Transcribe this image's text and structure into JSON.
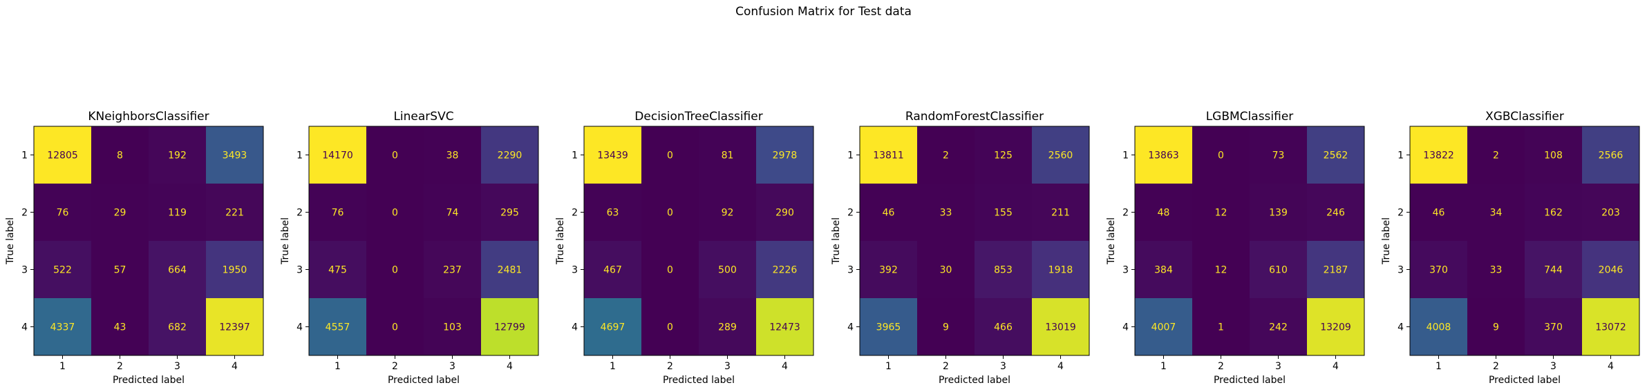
{
  "suptitle": "Confusion Matrix for Test data",
  "colors": {
    "low": "#440154",
    "high": "#fde725",
    "cell_text_dark_bg": "#fde725",
    "cell_text_light_bg": "#440154"
  },
  "chart_data": [
    {
      "type": "heatmap",
      "title": "KNeighborsClassifier",
      "xlabel": "Predicted label",
      "ylabel": "True label",
      "x_ticks": [
        "1",
        "2",
        "3",
        "4"
      ],
      "y_ticks": [
        "1",
        "2",
        "3",
        "4"
      ],
      "matrix": [
        [
          12805,
          8,
          192,
          3493
        ],
        [
          76,
          29,
          119,
          221
        ],
        [
          522,
          57,
          664,
          1950
        ],
        [
          4337,
          43,
          682,
          12397
        ]
      ]
    },
    {
      "type": "heatmap",
      "title": "LinearSVC",
      "xlabel": "Predicted label",
      "ylabel": "True label",
      "x_ticks": [
        "1",
        "2",
        "3",
        "4"
      ],
      "y_ticks": [
        "1",
        "2",
        "3",
        "4"
      ],
      "matrix": [
        [
          14170,
          0,
          38,
          2290
        ],
        [
          76,
          0,
          74,
          295
        ],
        [
          475,
          0,
          237,
          2481
        ],
        [
          4557,
          0,
          103,
          12799
        ]
      ]
    },
    {
      "type": "heatmap",
      "title": "DecisionTreeClassifier",
      "xlabel": "Predicted label",
      "ylabel": "True label",
      "x_ticks": [
        "1",
        "2",
        "3",
        "4"
      ],
      "y_ticks": [
        "1",
        "2",
        "3",
        "4"
      ],
      "matrix": [
        [
          13439,
          0,
          81,
          2978
        ],
        [
          63,
          0,
          92,
          290
        ],
        [
          467,
          0,
          500,
          2226
        ],
        [
          4697,
          0,
          289,
          12473
        ]
      ]
    },
    {
      "type": "heatmap",
      "title": "RandomForestClassifier",
      "xlabel": "Predicted label",
      "ylabel": "True label",
      "x_ticks": [
        "1",
        "2",
        "3",
        "4"
      ],
      "y_ticks": [
        "1",
        "2",
        "3",
        "4"
      ],
      "matrix": [
        [
          13811,
          2,
          125,
          2560
        ],
        [
          46,
          33,
          155,
          211
        ],
        [
          392,
          30,
          853,
          1918
        ],
        [
          3965,
          9,
          466,
          13019
        ]
      ]
    },
    {
      "type": "heatmap",
      "title": "LGBMClassifier",
      "xlabel": "Predicted label",
      "ylabel": "True label",
      "x_ticks": [
        "1",
        "2",
        "3",
        "4"
      ],
      "y_ticks": [
        "1",
        "2",
        "3",
        "4"
      ],
      "matrix": [
        [
          13863,
          0,
          73,
          2562
        ],
        [
          48,
          12,
          139,
          246
        ],
        [
          384,
          12,
          610,
          2187
        ],
        [
          4007,
          1,
          242,
          13209
        ]
      ]
    },
    {
      "type": "heatmap",
      "title": "XGBClassifier",
      "xlabel": "Predicted label",
      "ylabel": "True label",
      "x_ticks": [
        "1",
        "2",
        "3",
        "4"
      ],
      "y_ticks": [
        "1",
        "2",
        "3",
        "4"
      ],
      "matrix": [
        [
          13822,
          2,
          108,
          2566
        ],
        [
          46,
          34,
          162,
          203
        ],
        [
          370,
          33,
          744,
          2046
        ],
        [
          4008,
          9,
          370,
          13072
        ]
      ]
    }
  ]
}
